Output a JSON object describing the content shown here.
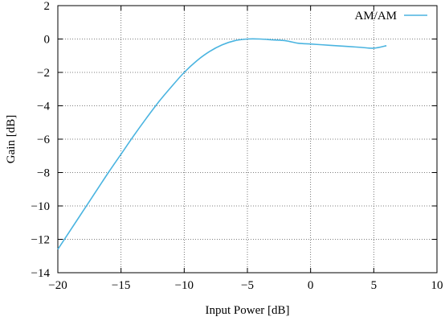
{
  "chart_data": {
    "type": "line",
    "title": "",
    "xlabel": "Input Power [dB]",
    "ylabel": "Gain [dB]",
    "xlim": [
      -20,
      10
    ],
    "ylim": [
      -14,
      2
    ],
    "xticks": [
      -20,
      -15,
      -10,
      -5,
      0,
      5,
      10
    ],
    "yticks": [
      -14,
      -12,
      -10,
      -8,
      -6,
      -4,
      -2,
      0,
      2
    ],
    "xtick_labels": [
      "−20",
      "−15",
      "−10",
      "−5",
      "0",
      "5",
      "10"
    ],
    "ytick_labels": [
      "−14",
      "−12",
      "−10",
      "−8",
      "−6",
      "−4",
      "−2",
      "0",
      "2"
    ],
    "grid": true,
    "grid_style": "dotted",
    "legend_position": "top-right",
    "series": [
      {
        "name": "AM/AM",
        "color": "#4ab4e0",
        "x": [
          -20,
          -19,
          -18,
          -17,
          -16,
          -15,
          -14,
          -13,
          -12,
          -11,
          -10,
          -9,
          -8,
          -7,
          -6,
          -5,
          -4,
          -3,
          -2,
          -1,
          0,
          1,
          2,
          3,
          4,
          5,
          6
        ],
        "y": [
          -12.6,
          -11.45,
          -10.3,
          -9.15,
          -8.0,
          -6.9,
          -5.8,
          -4.75,
          -3.75,
          -2.85,
          -2.0,
          -1.3,
          -0.75,
          -0.35,
          -0.1,
          0.0,
          0.0,
          -0.05,
          -0.1,
          -0.25,
          -0.3,
          -0.35,
          -0.4,
          -0.45,
          -0.5,
          -0.55,
          -0.4
        ]
      }
    ]
  }
}
